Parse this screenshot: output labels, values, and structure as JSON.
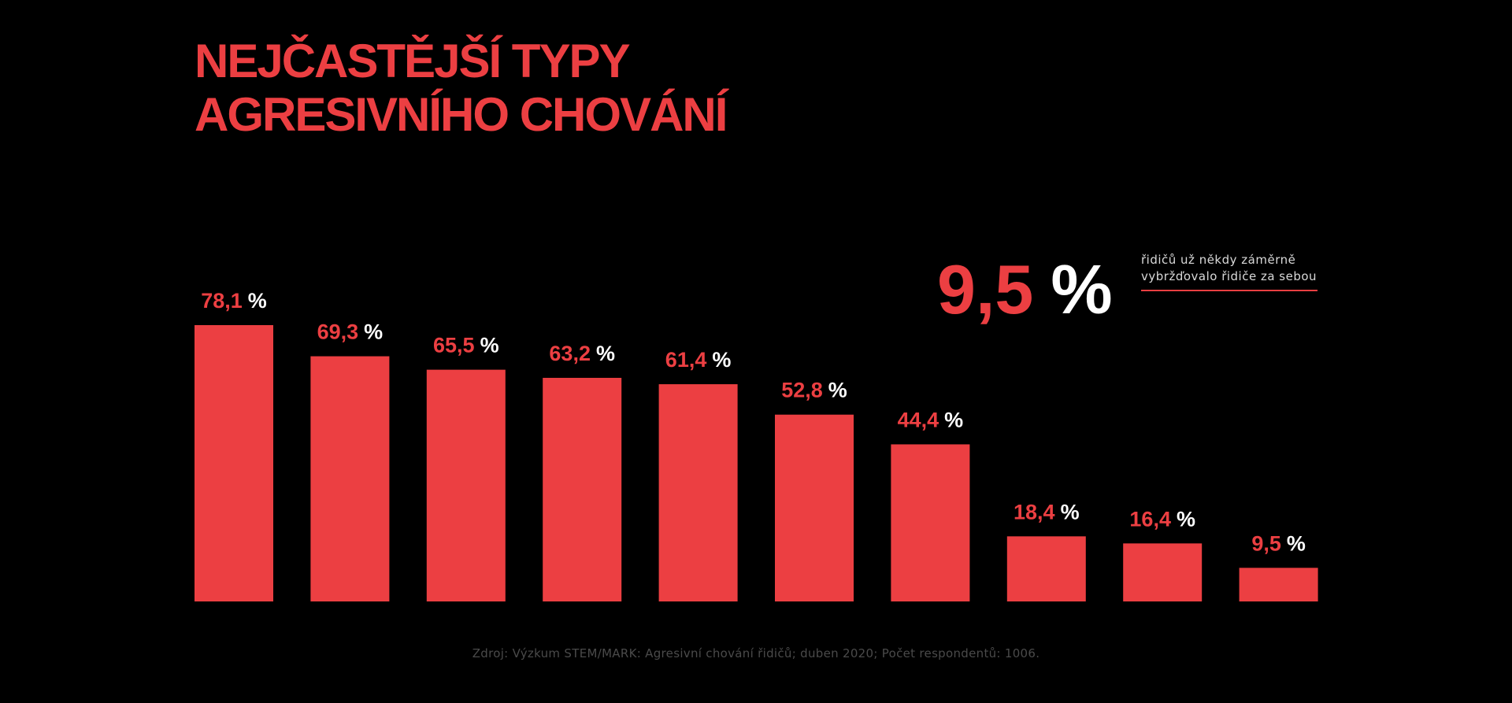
{
  "title_lines": [
    "NEJČASTĚJŠÍ TYPY",
    "AGRESIVNÍHO CHOVÁNÍ"
  ],
  "callout": {
    "value": "9,5",
    "unit": "%",
    "text": "řidičů už někdy záměrně vybržďovalo řidiče za sebou"
  },
  "chart_data": {
    "type": "bar",
    "title": "NEJČASTĚJŠÍ TYPY AGRESIVNÍHO CHOVÁNÍ",
    "values": [
      78.1,
      69.3,
      65.5,
      63.2,
      61.4,
      52.8,
      44.4,
      18.4,
      16.4,
      9.5
    ],
    "value_labels": [
      "78,1",
      "69,3",
      "65,5",
      "63,2",
      "61,4",
      "52,8",
      "44,4",
      "18,4",
      "16,4",
      "9,5"
    ],
    "unit": "%",
    "ylim": [
      0,
      100
    ],
    "grid": false,
    "legend": "none",
    "bar_color": "#ec3f42"
  },
  "source": "Zdroj: Výzkum STEM/MARK: Agresivní chování řidičů; duben 2020; Počet respondentů: 1006.",
  "colors": {
    "background": "#000000",
    "accent": "#ec3f42",
    "white": "#ffffff"
  }
}
